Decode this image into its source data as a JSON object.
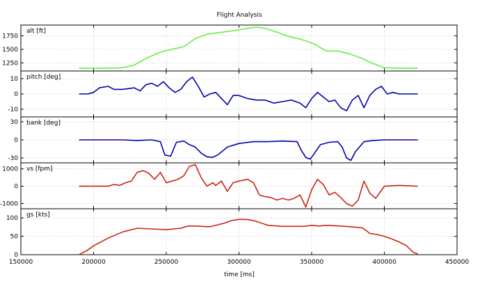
{
  "chart_data": {
    "type": "line",
    "title": "Flight Analysis",
    "xlabel": "time [ms]",
    "xlim": [
      150000,
      450000
    ],
    "xticks": [
      "150000",
      "200000",
      "250000",
      "300000",
      "350000",
      "400000",
      "450000"
    ],
    "grid": true,
    "panels": [
      {
        "label": "alt [ft]",
        "ylim": [
          1100,
          1950
        ],
        "yticks": [
          1250,
          1500,
          1750
        ],
        "color": "#66ee44",
        "x": [
          190000,
          200000,
          210000,
          220000,
          228000,
          236000,
          245000,
          255000,
          262000,
          270000,
          278000,
          286000,
          292000,
          300000,
          306000,
          312000,
          318000,
          326000,
          334000,
          342000,
          348000,
          353000,
          360000,
          368000,
          376000,
          384000,
          392000,
          400000,
          410000,
          423000
        ],
        "y": [
          1150,
          1150,
          1152,
          1160,
          1210,
          1330,
          1440,
          1510,
          1550,
          1700,
          1780,
          1810,
          1830,
          1860,
          1890,
          1910,
          1890,
          1820,
          1740,
          1690,
          1640,
          1580,
          1470,
          1470,
          1420,
          1340,
          1240,
          1160,
          1150,
          1150
        ]
      },
      {
        "label": "pitch [deg]",
        "ylim": [
          -15,
          15
        ],
        "yticks": [
          -10,
          0,
          10
        ],
        "color": "#0000aa",
        "x": [
          190000,
          196000,
          200000,
          204000,
          210000,
          214000,
          220000,
          228000,
          232000,
          236000,
          240000,
          244000,
          248000,
          252000,
          256000,
          260000,
          264000,
          268000,
          272000,
          276000,
          280000,
          284000,
          288000,
          292000,
          296000,
          300000,
          306000,
          312000,
          318000,
          324000,
          330000,
          336000,
          342000,
          346000,
          350000,
          354000,
          358000,
          362000,
          366000,
          370000,
          374000,
          378000,
          382000,
          386000,
          390000,
          394000,
          398000,
          402000,
          406000,
          410000,
          416000,
          423000
        ],
        "y": [
          0,
          0,
          1,
          4,
          5,
          3,
          3,
          4,
          2,
          6,
          7,
          5,
          8,
          4,
          1,
          3,
          8,
          11,
          5,
          -2,
          0,
          1,
          -3,
          -7,
          -1,
          -1,
          -3,
          -4,
          -4,
          -6,
          -5,
          -4,
          -6,
          -9,
          -3,
          1,
          -2,
          -5,
          -4,
          -9,
          -11,
          -4,
          -1,
          -9,
          -1,
          3,
          5,
          0,
          1,
          0,
          0,
          0
        ]
      },
      {
        "label": "bank [deg]",
        "ylim": [
          -38,
          38
        ],
        "yticks": [
          -30,
          0,
          30
        ],
        "color": "#0000aa",
        "x": [
          190000,
          200000,
          210000,
          220000,
          230000,
          240000,
          246000,
          249000,
          253000,
          257000,
          262000,
          266000,
          270000,
          274000,
          278000,
          282000,
          286000,
          292000,
          300000,
          310000,
          320000,
          330000,
          340000,
          343000,
          346000,
          349000,
          352000,
          356000,
          362000,
          368000,
          371000,
          374000,
          377000,
          380000,
          386000,
          392000,
          400000,
          410000,
          423000
        ],
        "y": [
          0,
          0,
          0,
          0,
          -1,
          0,
          -3,
          -25,
          -27,
          -4,
          -2,
          -8,
          -12,
          -22,
          -28,
          -29,
          -24,
          -12,
          -6,
          -3,
          -3,
          -2,
          -3,
          -18,
          -29,
          -32,
          -22,
          -8,
          -4,
          -3,
          -12,
          -30,
          -34,
          -20,
          -3,
          -1,
          0,
          0,
          0
        ]
      },
      {
        "label": "vs [fpm]",
        "ylim": [
          -1300,
          1350
        ],
        "yticks": [
          -1000,
          0,
          1000
        ],
        "color": "#cc2211",
        "x": [
          190000,
          200000,
          210000,
          214000,
          218000,
          222000,
          226000,
          230000,
          234000,
          238000,
          242000,
          246000,
          250000,
          254000,
          258000,
          262000,
          266000,
          270000,
          274000,
          278000,
          282000,
          284000,
          288000,
          292000,
          296000,
          300000,
          306000,
          310000,
          314000,
          318000,
          322000,
          326000,
          330000,
          334000,
          338000,
          342000,
          346000,
          350000,
          354000,
          358000,
          362000,
          366000,
          370000,
          374000,
          378000,
          382000,
          386000,
          390000,
          394000,
          400000,
          410000,
          423000
        ],
        "y": [
          0,
          0,
          0,
          100,
          50,
          200,
          300,
          800,
          900,
          750,
          400,
          800,
          200,
          300,
          400,
          600,
          1150,
          1250,
          500,
          0,
          200,
          50,
          300,
          -300,
          200,
          300,
          400,
          200,
          -500,
          -600,
          -650,
          -800,
          -700,
          -800,
          -700,
          -500,
          -1200,
          -200,
          400,
          100,
          -500,
          -350,
          -650,
          -1000,
          -1150,
          -800,
          300,
          -400,
          -700,
          0,
          50,
          0
        ]
      },
      {
        "label": "gs [kts]",
        "ylim": [
          0,
          125
        ],
        "yticks": [
          0,
          50,
          100
        ],
        "color": "#cc2211",
        "x": [
          190000,
          195000,
          200000,
          210000,
          220000,
          230000,
          240000,
          250000,
          260000,
          265000,
          270000,
          280000,
          290000,
          295000,
          300000,
          305000,
          310000,
          320000,
          330000,
          340000,
          345000,
          350000,
          355000,
          360000,
          370000,
          380000,
          385000,
          390000,
          395000,
          400000,
          405000,
          410000,
          415000,
          420000,
          423000
        ],
        "y": [
          0,
          10,
          24,
          45,
          62,
          72,
          70,
          68,
          72,
          78,
          78,
          76,
          86,
          93,
          96,
          96,
          93,
          80,
          77,
          77,
          77,
          80,
          78,
          80,
          78,
          75,
          73,
          58,
          55,
          50,
          43,
          35,
          25,
          6,
          2
        ]
      }
    ]
  }
}
